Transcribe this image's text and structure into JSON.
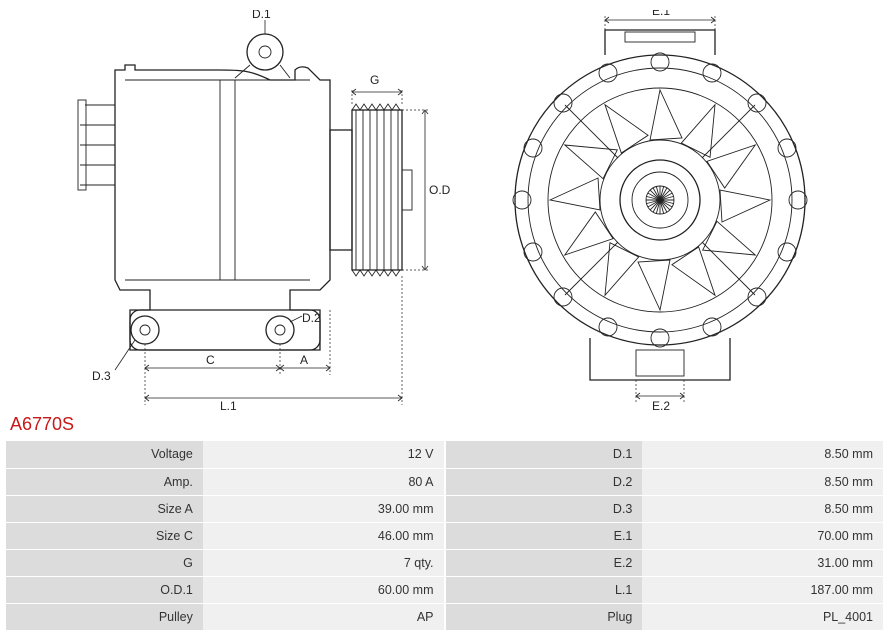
{
  "part_number": "A6770S",
  "colors": {
    "accent": "#c91818",
    "line": "#222222",
    "label_bg": "#dcdcdc",
    "value_bg": "#f0f0f0",
    "page_bg": "#ffffff"
  },
  "diagram_labels": {
    "side": {
      "D1": "D.1",
      "D2": "D.2",
      "D3": "D.3",
      "G": "G",
      "OD1": "O.D.1",
      "A": "A",
      "C": "C",
      "L1": "L.1"
    },
    "front": {
      "E1": "E.1",
      "E2": "E.2"
    }
  },
  "specs_left": [
    {
      "label": "Voltage",
      "value": "12 V"
    },
    {
      "label": "Amp.",
      "value": "80 A"
    },
    {
      "label": "Size A",
      "value": "39.00 mm"
    },
    {
      "label": "Size C",
      "value": "46.00 mm"
    },
    {
      "label": "G",
      "value": "7 qty."
    },
    {
      "label": "O.D.1",
      "value": "60.00 mm"
    },
    {
      "label": "Pulley",
      "value": "AP"
    }
  ],
  "specs_right": [
    {
      "label": "D.1",
      "value": "8.50 mm"
    },
    {
      "label": "D.2",
      "value": "8.50 mm"
    },
    {
      "label": "D.3",
      "value": "8.50 mm"
    },
    {
      "label": "E.1",
      "value": "70.00 mm"
    },
    {
      "label": "E.2",
      "value": "31.00 mm"
    },
    {
      "label": "L.1",
      "value": "187.00 mm"
    },
    {
      "label": "Plug",
      "value": "PL_4001"
    }
  ]
}
